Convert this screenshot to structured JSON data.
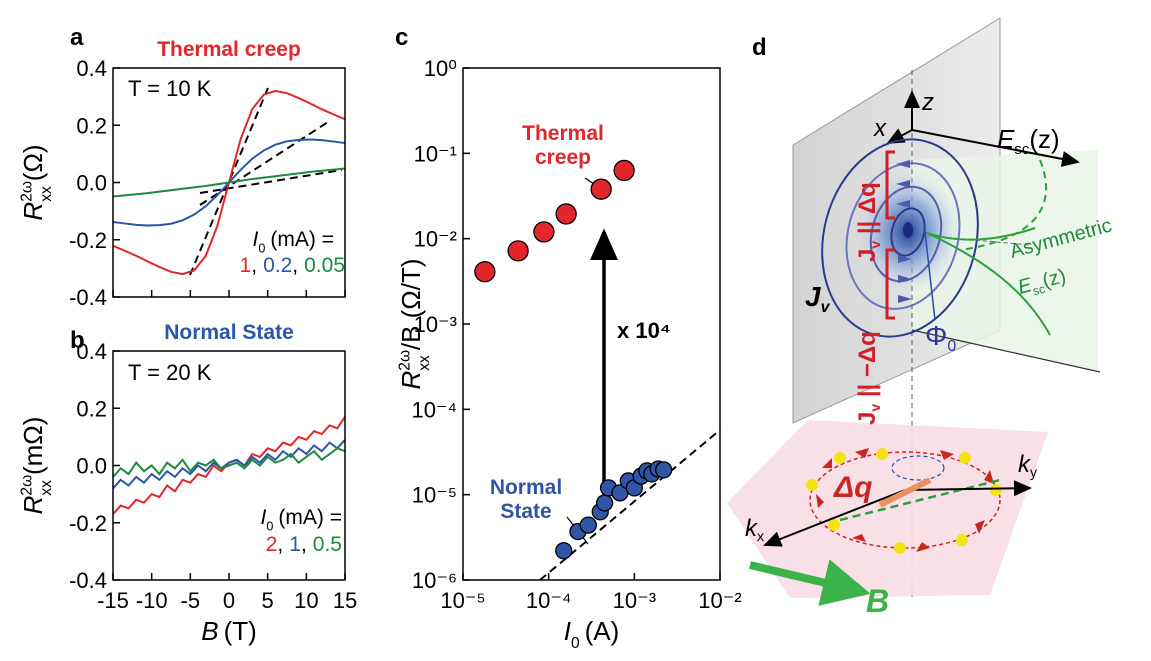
{
  "chart_data": [
    {
      "type": "line",
      "panel": "a",
      "title": "Thermal creep",
      "title_color": "#e3262b",
      "annotation": "T = 10 K",
      "ylabel": {
        "main": "R",
        "sup": "2ω",
        "sub": "xx",
        "rest": "(Ω)"
      },
      "legend_title": {
        "main": "I",
        "sub": "0",
        "rest": "(mA) ="
      },
      "legend_separator": ",",
      "x": [
        -15,
        -13.5,
        -12,
        -10.5,
        -9,
        -7.5,
        -6,
        -4.5,
        -3,
        -1.5,
        0,
        1.5,
        3,
        4.5,
        6,
        7.5,
        9,
        10.5,
        12,
        13.5,
        15
      ],
      "series": [
        {
          "name": "1",
          "color": "#e3262b",
          "values": [
            -0.221,
            -0.238,
            -0.256,
            -0.276,
            -0.295,
            -0.312,
            -0.32,
            -0.307,
            -0.256,
            -0.151,
            0,
            0.151,
            0.256,
            0.307,
            0.32,
            0.312,
            0.295,
            0.276,
            0.256,
            0.238,
            0.221
          ]
        },
        {
          "name": "0.2",
          "color": "#2b57a6",
          "values": [
            -0.138,
            -0.143,
            -0.148,
            -0.15,
            -0.149,
            -0.144,
            -0.132,
            -0.112,
            -0.083,
            -0.044,
            0,
            0.044,
            0.083,
            0.112,
            0.132,
            0.144,
            0.149,
            0.15,
            0.148,
            0.143,
            0.138
          ]
        },
        {
          "name": "0.05",
          "color": "#1e8a3c",
          "values": [
            -0.049,
            -0.045,
            -0.041,
            -0.037,
            -0.032,
            -0.027,
            -0.022,
            -0.017,
            -0.012,
            -0.006,
            0,
            0.006,
            0.012,
            0.017,
            0.022,
            0.027,
            0.032,
            0.037,
            0.041,
            0.045,
            0.049
          ]
        }
      ],
      "xlim": [
        -15,
        15
      ],
      "xticks": [
        -15,
        -10,
        -5,
        0,
        5,
        10,
        15
      ],
      "show_xtick_labels": false,
      "ylim": [
        -0.4,
        0.4
      ],
      "yticks": [
        0.4,
        0.2,
        {
          "value": 0,
          "label": "0.0"
        },
        -0.2,
        -0.4
      ]
    },
    {
      "type": "line",
      "panel": "b",
      "title": "Normal State",
      "title_color": "#2b57a6",
      "annotation": "T = 20 K",
      "ylabel": {
        "main": "R",
        "sup": "2ω",
        "sub": "xx",
        "rest": "(mΩ)"
      },
      "xlabel": {
        "main": "B",
        "rest": "(T)"
      },
      "legend_title": {
        "main": "I",
        "sub": "0",
        "rest": "(mA) ="
      },
      "legend_separator": ",",
      "x": [
        -15,
        -14,
        -13,
        -12,
        -11,
        -10,
        -9,
        -8,
        -7,
        -6,
        -5,
        -4,
        -3,
        -2,
        -1,
        0,
        1,
        2,
        3,
        4,
        5,
        6,
        7,
        8,
        9,
        10,
        11,
        12,
        13,
        14,
        15
      ],
      "series": [
        {
          "name": "2",
          "color": "#e3262b",
          "values": [
            -0.17,
            -0.14,
            -0.15,
            -0.12,
            -0.13,
            -0.1,
            -0.11,
            -0.07,
            -0.09,
            -0.05,
            -0.06,
            -0.03,
            -0.04,
            0,
            -0.02,
            0.01,
            0.02,
            0,
            0.04,
            0.03,
            0.06,
            0.05,
            0.08,
            0.07,
            0.1,
            0.09,
            0.12,
            0.11,
            0.14,
            0.13,
            0.17
          ]
        },
        {
          "name": "1",
          "color": "#2b57a6",
          "values": [
            -0.08,
            -0.05,
            -0.07,
            -0.04,
            -0.06,
            -0.03,
            -0.05,
            -0.02,
            -0.04,
            -0.01,
            -0.03,
            0,
            -0.02,
            0.01,
            -0.01,
            0.01,
            0.02,
            0,
            0.03,
            0.01,
            0.04,
            0.02,
            0.05,
            0.03,
            0.06,
            0.04,
            0.07,
            0.05,
            0.08,
            0.06,
            0.09
          ]
        },
        {
          "name": "0.5",
          "color": "#1e8a3c",
          "values": [
            -0.04,
            -0.01,
            -0.03,
            0.01,
            -0.02,
            0,
            -0.03,
            0.01,
            -0.01,
            0.02,
            -0.02,
            0.01,
            0,
            0.02,
            -0.01,
            0,
            0.01,
            -0.01,
            0.02,
            0,
            0.03,
            0.01,
            0.02,
            0.04,
            0.01,
            0.03,
            0.05,
            0.02,
            0.04,
            0.06,
            0.05
          ]
        }
      ],
      "xlim": [
        -15,
        15
      ],
      "xticks": [
        -15,
        -10,
        -5,
        0,
        5,
        10,
        15
      ],
      "show_xtick_labels": true,
      "ylim": [
        -0.4,
        0.4
      ],
      "yticks": [
        0.4,
        0.2,
        {
          "value": 0,
          "label": "0.0"
        },
        -0.2,
        -0.4
      ]
    },
    {
      "type": "scatter",
      "panel": "c",
      "log_x": true,
      "log_y": true,
      "annotation": "x 10⁴",
      "ylabel": {
        "main": "R",
        "sup": "2ω",
        "sub": "xx",
        "rest": "/B (Ω/T)"
      },
      "xlabel": {
        "main": "I",
        "sub": "0",
        "rest": "(A)"
      },
      "series": [
        {
          "name": "Thermal creep",
          "color": "#e3262b",
          "x": [
            1.8e-05,
            4.4e-05,
            8.8e-05,
            0.00016,
            0.00041,
            0.00076
          ],
          "values": [
            0.0041,
            0.0072,
            0.012,
            0.0195,
            0.038,
            0.063
          ]
        },
        {
          "name": "Normal State",
          "color": "#2f55a4",
          "x": [
            0.00015,
            0.00022,
            0.00029,
            0.0004,
            0.00045,
            0.0005,
            0.00068,
            0.00085,
            0.001,
            0.0012,
            0.0014,
            0.0016,
            0.0019,
            0.0022
          ],
          "values": [
            2.2e-06,
            3.7e-06,
            4.4e-06,
            6.3e-06,
            8e-06,
            1.2e-05,
            1.05e-05,
            1.45e-05,
            1.2e-05,
            1.65e-05,
            1.9e-05,
            1.75e-05,
            2e-05,
            1.95e-05
          ]
        }
      ],
      "xlim": [
        1e-05,
        0.01
      ],
      "xticks": [
        {
          "value": 1e-05,
          "label": "10⁻⁵"
        },
        {
          "value": 0.0001,
          "label": "10⁻⁴"
        },
        {
          "value": 0.001,
          "label": "10⁻³"
        },
        {
          "value": 0.01,
          "label": "10⁻²"
        }
      ],
      "ylim": [
        1e-06,
        1
      ],
      "yticks": [
        {
          "value": 1,
          "label": "10⁰"
        },
        {
          "value": 0.1,
          "label": "10⁻¹"
        },
        {
          "value": 0.01,
          "label": "10⁻²"
        },
        {
          "value": 0.001,
          "label": "10⁻³"
        },
        {
          "value": 0.0001,
          "label": "10⁻⁴"
        },
        {
          "value": 1e-05,
          "label": "10⁻⁵"
        },
        {
          "value": 1e-06,
          "label": "10⁻⁶"
        }
      ]
    }
  ],
  "diagram": {
    "panel": "d",
    "axis_z": "z",
    "axis_x": "x",
    "field": {
      "main": "E",
      "sub": "sc",
      "rest": "(z)"
    },
    "vortex_parallel": {
      "main": "J",
      "sub": "v",
      "rest": " || Δq"
    },
    "vortex_antiparallel": {
      "main": "J",
      "sub": "v",
      "rest": " || −Δq"
    },
    "vortex": {
      "main": "J",
      "sub": "v"
    },
    "flux": {
      "main": "Φ",
      "sub": "0"
    },
    "asymmetric": "Asymmetric",
    "asym_field": {
      "main": "E",
      "sub": "sc",
      "rest": "(z)"
    },
    "momentum": "Δq",
    "ky": {
      "main": "k",
      "sub": "y"
    },
    "kx": {
      "main": "k",
      "sub": "x"
    },
    "field_B": "B"
  }
}
